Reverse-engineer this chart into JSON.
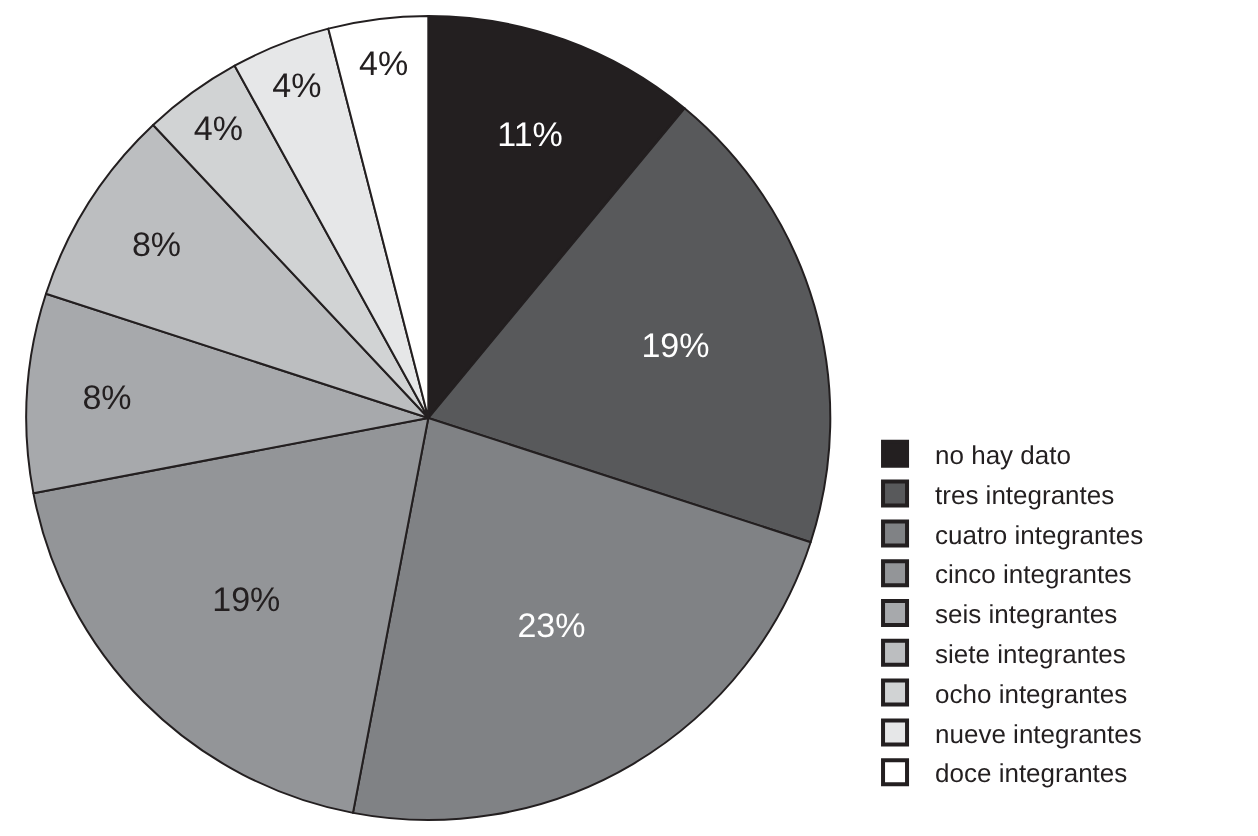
{
  "chart_data": {
    "type": "pie",
    "categories": [
      "no hay dato",
      "tres integrantes",
      "cuatro integrantes",
      "cinco integrantes",
      "seis integrantes",
      "siete integrantes",
      "ocho integrantes",
      "nueve integrantes",
      "doce integrantes"
    ],
    "values": [
      11,
      19,
      23,
      19,
      8,
      8,
      4,
      4,
      4
    ],
    "value_labels": [
      "11%",
      "19%",
      "23%",
      "19%",
      "8%",
      "8%",
      "4%",
      "4%",
      "4%"
    ],
    "colors": [
      "#231f20",
      "#58595b",
      "#808285",
      "#939598",
      "#a7a9ac",
      "#bcbec0",
      "#d1d3d4",
      "#e6e7e8",
      "#ffffff"
    ],
    "legend": "right"
  }
}
